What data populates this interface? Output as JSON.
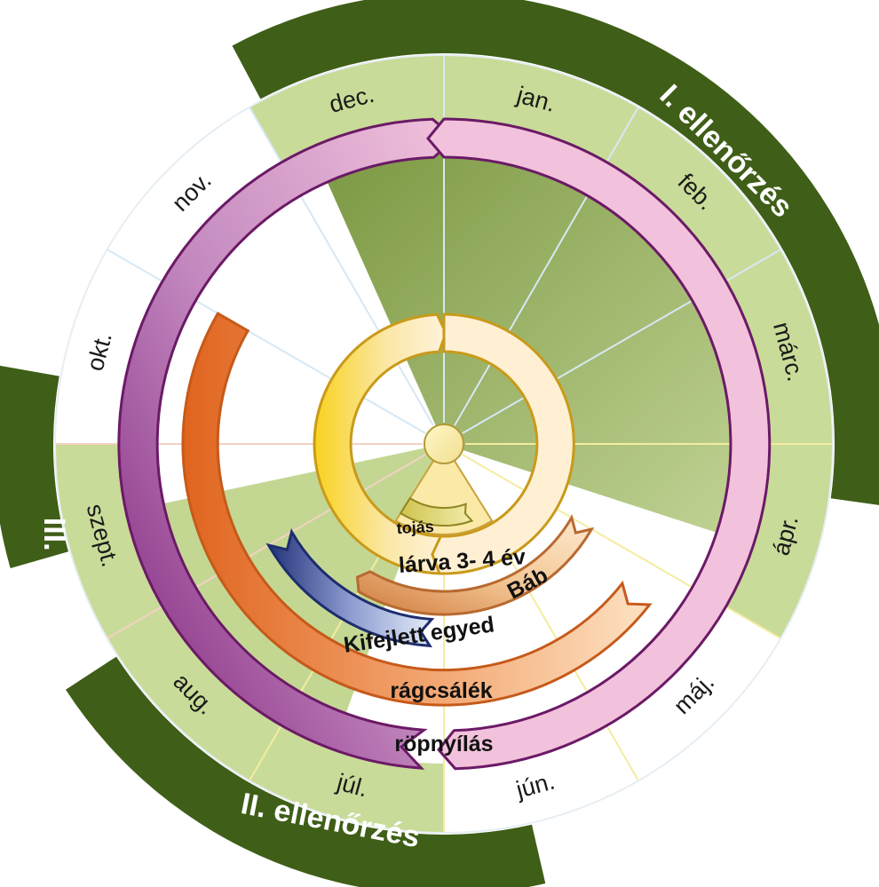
{
  "months": [
    "jan.",
    "feb.",
    "márc.",
    "ápr.",
    "máj.",
    "jún.",
    "júl.",
    "aug.",
    "szept.",
    "okt.",
    "nov.",
    "dec."
  ],
  "checks": {
    "first": "I. ellenőrzés",
    "second": "II. ellenőrzés",
    "third": "III. ell."
  },
  "stages": {
    "egg": "tojás",
    "larva": "lárva  3- 4 év",
    "pupa": "Báb",
    "adult": "Kifejlett egyed",
    "gnawings": "rágcsálék",
    "exit_holes": "röpnyílás"
  },
  "colors": {
    "check_band": "#3f5e17",
    "month_shade": "#c9db98",
    "sector_green": "#7f9e3f",
    "exit_holes": "#a0469b",
    "gnawings": "#e66f2a",
    "adult": "#2d3f8c",
    "pupa": "#f0a865",
    "larva": "#f7cd3c",
    "egg": "#cfc35a"
  }
}
